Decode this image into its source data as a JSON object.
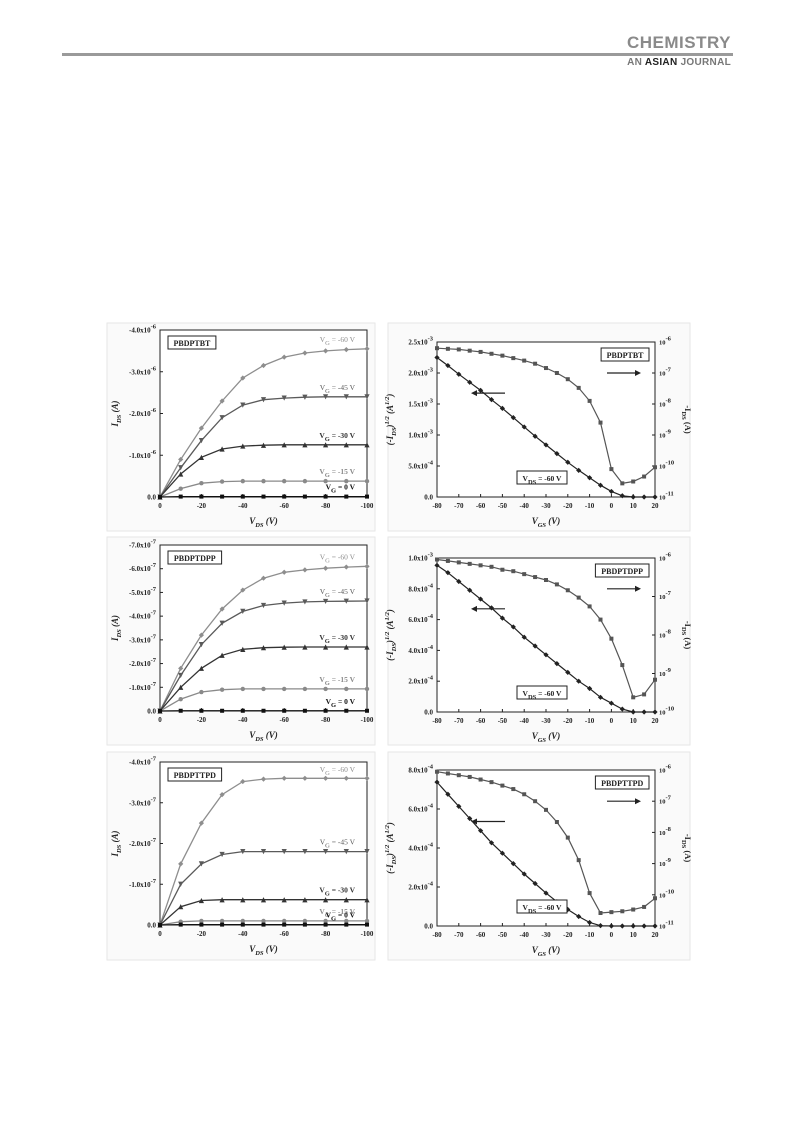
{
  "header": {
    "journal_name": "CHEMISTRY",
    "journal_sub_prefix": "AN ",
    "journal_sub_asian": "ASIAN",
    "journal_sub_suffix": " JOURNAL"
  },
  "chart_data": [
    {
      "type": "line",
      "panel": "output",
      "label": "PBDPTBT",
      "xlabel": "V_DS (V)",
      "ylabel": "I_DS (A)",
      "xlim": [
        0,
        -100
      ],
      "ylim": [
        0,
        -4e-06
      ],
      "x_ticks": [
        "0",
        "-20",
        "-40",
        "-60",
        "-80",
        "-100"
      ],
      "y_ticks": [
        "0.0",
        "-1.0x10^-6",
        "-2.0x10^-6",
        "-3.0x10^-6",
        "-4.0x10^-6"
      ],
      "x": [
        0,
        -10,
        -20,
        -30,
        -40,
        -50,
        -60,
        -70,
        -80,
        -90,
        -100
      ],
      "series": [
        {
          "name": "V_G = -60 V",
          "values": [
            0,
            -9e-07,
            -1.65e-06,
            -2.3e-06,
            -2.85e-06,
            -3.15e-06,
            -3.35e-06,
            -3.45e-06,
            -3.5e-06,
            -3.53e-06,
            -3.55e-06
          ]
        },
        {
          "name": "V_G = -45 V",
          "values": [
            0,
            -7e-07,
            -1.35e-06,
            -1.9e-06,
            -2.2e-06,
            -2.33e-06,
            -2.37e-06,
            -2.39e-06,
            -2.4e-06,
            -2.4e-06,
            -2.4e-06
          ]
        },
        {
          "name": "V_G = -30 V",
          "values": [
            0,
            -5.5e-07,
            -9.5e-07,
            -1.15e-06,
            -1.22e-06,
            -1.24e-06,
            -1.25e-06,
            -1.25e-06,
            -1.25e-06,
            -1.25e-06,
            -1.25e-06
          ]
        },
        {
          "name": "V_G = -15 V",
          "values": [
            0,
            -2e-07,
            -3.3e-07,
            -3.7e-07,
            -3.8e-07,
            -3.8e-07,
            -3.8e-07,
            -3.8e-07,
            -3.8e-07,
            -3.8e-07,
            -3.8e-07
          ]
        },
        {
          "name": "V_G = 0 V",
          "values": [
            0,
            -1e-08,
            -1e-08,
            -1e-08,
            -1e-08,
            -1e-08,
            -1e-08,
            -1e-08,
            -1e-08,
            -1e-08,
            -1e-08
          ]
        }
      ]
    },
    {
      "type": "line",
      "panel": "transfer",
      "label": "PBDPTBT",
      "annotation": "V_DS = -60 V",
      "xlabel": "V_GS (V)",
      "ylabel": "(-I_DS)^1/2 (A^1/2)",
      "y2label": "-I_DS (A)",
      "xlim": [
        -80,
        20
      ],
      "ylim": [
        0,
        0.0025
      ],
      "x_ticks": [
        "-80",
        "-70",
        "-60",
        "-50",
        "-40",
        "-30",
        "-20",
        "-10",
        "0",
        "10",
        "20"
      ],
      "y_ticks": [
        "0.0",
        "5.0x10^-4",
        "1.0x10^-3",
        "1.5x10^-3",
        "2.0x10^-3",
        "2.5x10^-3"
      ],
      "y2_ticks": [
        "10^-11",
        "10^-10",
        "10^-9",
        "10^-8",
        "10^-7",
        "10^-6"
      ],
      "x": [
        -80,
        -75,
        -70,
        -65,
        -60,
        -55,
        -50,
        -45,
        -40,
        -35,
        -30,
        -25,
        -20,
        -15,
        -10,
        -5,
        0,
        5,
        10,
        15,
        20
      ],
      "series": [
        {
          "name": "sqrt",
          "values": [
            0.00225,
            0.00212,
            0.00198,
            0.00185,
            0.00172,
            0.00157,
            0.00143,
            0.00128,
            0.00113,
            0.00098,
            0.00084,
            0.0007,
            0.00056,
            0.00043,
            0.00031,
            0.00019,
            9e-05,
            2e-05,
            0.0,
            0.0,
            0.0
          ]
        },
        {
          "name": "log",
          "values": [
            0.0024,
            0.00239,
            0.00238,
            0.00236,
            0.00234,
            0.00231,
            0.00228,
            0.00224,
            0.0022,
            0.00215,
            0.00208,
            0.002,
            0.0019,
            0.00176,
            0.00155,
            0.0012,
            0.00045,
            0.00022,
            0.00025,
            0.00033,
            0.00048
          ]
        }
      ]
    },
    {
      "type": "line",
      "panel": "output",
      "label": "PBDPTDPP",
      "xlabel": "V_DS (V)",
      "ylabel": "I_DS (A)",
      "xlim": [
        0,
        -100
      ],
      "ylim": [
        0,
        -7e-07
      ],
      "x_ticks": [
        "0",
        "-20",
        "-40",
        "-60",
        "-80",
        "-100"
      ],
      "y_ticks": [
        "0.0",
        "-1.0x10^-7",
        "-2.0x10^-7",
        "-3.0x10^-7",
        "-4.0x10^-7",
        "-5.0x10^-7",
        "-6.0x10^-7",
        "-7.0x10^-7"
      ],
      "x": [
        0,
        -10,
        -20,
        -30,
        -40,
        -50,
        -60,
        -70,
        -80,
        -90,
        -100
      ],
      "series": [
        {
          "name": "V_G = -60 V",
          "values": [
            0,
            -1.8e-07,
            -3.2e-07,
            -4.3e-07,
            -5.1e-07,
            -5.6e-07,
            -5.85e-07,
            -5.95e-07,
            -6.02e-07,
            -6.07e-07,
            -6.1e-07
          ]
        },
        {
          "name": "V_G = -45 V",
          "values": [
            0,
            -1.5e-07,
            -2.8e-07,
            -3.7e-07,
            -4.2e-07,
            -4.45e-07,
            -4.55e-07,
            -4.6e-07,
            -4.62e-07,
            -4.63e-07,
            -4.64e-07
          ]
        },
        {
          "name": "V_G = -30 V",
          "values": [
            0,
            -1e-07,
            -1.8e-07,
            -2.35e-07,
            -2.6e-07,
            -2.67e-07,
            -2.69e-07,
            -2.7e-07,
            -2.7e-07,
            -2.7e-07,
            -2.7e-07
          ]
        },
        {
          "name": "V_G = -15 V",
          "values": [
            0,
            -5e-08,
            -8e-08,
            -9e-08,
            -9.3e-08,
            -9.3e-08,
            -9.3e-08,
            -9.3e-08,
            -9.3e-08,
            -9.3e-08,
            -9.3e-08
          ]
        },
        {
          "name": "V_G = 0 V",
          "values": [
            0,
            -1e-09,
            -1e-09,
            -1e-09,
            -1e-09,
            -1e-09,
            -1e-09,
            -1e-09,
            -1e-09,
            -1e-09,
            -1e-09
          ]
        }
      ]
    },
    {
      "type": "line",
      "panel": "transfer",
      "label": "PBDPTDPP",
      "annotation": "V_DS = -60 V",
      "xlabel": "V_GS (V)",
      "ylabel": "(-I_DS)^1/2 (A^1/2)",
      "y2label": "-I_DS (A)",
      "xlim": [
        -80,
        20
      ],
      "ylim": [
        0,
        0.00105
      ],
      "x_ticks": [
        "-80",
        "-70",
        "-60",
        "-50",
        "-40",
        "-30",
        "-20",
        "-10",
        "0",
        "10",
        "20"
      ],
      "y_ticks": [
        "0.0",
        "2.0x10^-4",
        "4.0x10^-4",
        "6.0x10^-4",
        "8.0x10^-4",
        "1.0x10^-3"
      ],
      "y2_ticks": [
        "10^-10",
        "10^-9",
        "10^-8",
        "10^-7",
        "10^-6"
      ],
      "x": [
        -80,
        -75,
        -70,
        -65,
        -60,
        -55,
        -50,
        -45,
        -40,
        -35,
        -30,
        -25,
        -20,
        -15,
        -10,
        -5,
        0,
        5,
        10,
        15,
        20
      ],
      "series": [
        {
          "name": "sqrt",
          "values": [
            0.001,
            0.00095,
            0.00089,
            0.00083,
            0.00077,
            0.00071,
            0.00064,
            0.00058,
            0.00051,
            0.00045,
            0.00039,
            0.00033,
            0.00027,
            0.00021,
            0.00016,
            0.0001,
            6e-05,
            2e-05,
            0.0,
            0.0,
            0.0
          ]
        },
        {
          "name": "log",
          "values": [
            0.00104,
            0.00103,
            0.00102,
            0.00101,
            0.001,
            0.00099,
            0.00097,
            0.00096,
            0.00094,
            0.00092,
            0.0009,
            0.00087,
            0.00083,
            0.00078,
            0.00072,
            0.00063,
            0.0005,
            0.00032,
            0.0001,
            0.00012,
            0.00022
          ]
        }
      ]
    },
    {
      "type": "line",
      "panel": "output",
      "label": "PBDPTTPD",
      "xlabel": "V_DS (V)",
      "ylabel": "I_DS (A)",
      "xlim": [
        0,
        -100
      ],
      "ylim": [
        0,
        -4e-07
      ],
      "x_ticks": [
        "0",
        "-20",
        "-40",
        "-60",
        "-80",
        "-100"
      ],
      "y_ticks": [
        "0.0",
        "-1.0x10^-7",
        "-2.0x10^-7",
        "-3.0x10^-7",
        "-4.0x10^-7"
      ],
      "x": [
        0,
        -10,
        -20,
        -30,
        -40,
        -50,
        -60,
        -70,
        -80,
        -90,
        -100
      ],
      "series": [
        {
          "name": "V_G = -60 V",
          "values": [
            0,
            -1.5e-07,
            -2.5e-07,
            -3.2e-07,
            -3.52e-07,
            -3.58e-07,
            -3.6e-07,
            -3.6e-07,
            -3.6e-07,
            -3.6e-07,
            -3.6e-07
          ]
        },
        {
          "name": "V_G = -45 V",
          "values": [
            0,
            -1e-07,
            -1.5e-07,
            -1.73e-07,
            -1.8e-07,
            -1.8e-07,
            -1.8e-07,
            -1.8e-07,
            -1.8e-07,
            -1.8e-07,
            -1.8e-07
          ]
        },
        {
          "name": "V_G = -30 V",
          "values": [
            0,
            -4.5e-08,
            -6e-08,
            -6.2e-08,
            -6.2e-08,
            -6.2e-08,
            -6.2e-08,
            -6.2e-08,
            -6.2e-08,
            -6.2e-08,
            -6.2e-08
          ]
        },
        {
          "name": "V_G = -15 V",
          "values": [
            0,
            -8e-09,
            -1e-08,
            -1e-08,
            -1e-08,
            -1e-08,
            -1e-08,
            -1e-08,
            -1e-08,
            -1e-08,
            -1e-08
          ]
        },
        {
          "name": "V_G = 0 V",
          "values": [
            0,
            -1e-09,
            -1e-09,
            -1e-09,
            -1e-09,
            -1e-09,
            -1e-09,
            -1e-09,
            -1e-09,
            -1e-09,
            -1e-09
          ]
        }
      ]
    },
    {
      "type": "line",
      "panel": "transfer",
      "label": "PBDPTTPD",
      "annotation": "V_DS = -60 V",
      "xlabel": "V_GS (V)",
      "ylabel": "(-I_DS)^1/2 (A^1/2)",
      "y2label": "-I_DS (A)",
      "xlim": [
        -80,
        20
      ],
      "ylim": [
        0,
        0.0009
      ],
      "x_ticks": [
        "-80",
        "-70",
        "-60",
        "-50",
        "-40",
        "-30",
        "-20",
        "-10",
        "0",
        "10",
        "20"
      ],
      "y_ticks": [
        "0.0",
        "2.0x10^-4",
        "4.0x10^-4",
        "6.0x10^-4",
        "8.0x10^-4"
      ],
      "y2_ticks": [
        "10^-11",
        "10^-10",
        "10^-9",
        "10^-8",
        "10^-7",
        "10^-6"
      ],
      "x": [
        -80,
        -75,
        -70,
        -65,
        -60,
        -55,
        -50,
        -45,
        -40,
        -35,
        -30,
        -25,
        -20,
        -15,
        -10,
        -5,
        0,
        5,
        10,
        15,
        20
      ],
      "series": [
        {
          "name": "sqrt",
          "values": [
            0.00083,
            0.00076,
            0.00069,
            0.00062,
            0.00055,
            0.00048,
            0.00042,
            0.00036,
            0.0003,
            0.000245,
            0.00019,
            0.00014,
            9.5e-05,
            5.5e-05,
            2e-05,
            2e-06,
            0.0,
            0.0,
            0.0,
            0.0,
            0.0
          ]
        },
        {
          "name": "log",
          "values": [
            0.00089,
            0.00088,
            0.00087,
            0.00086,
            0.000845,
            0.00083,
            0.00081,
            0.00079,
            0.00076,
            0.00072,
            0.00067,
            0.0006,
            0.00051,
            0.00038,
            0.00019,
            7.5e-05,
            8e-05,
            8.5e-05,
            9.5e-05,
            0.00011,
            0.00016
          ]
        }
      ]
    }
  ]
}
